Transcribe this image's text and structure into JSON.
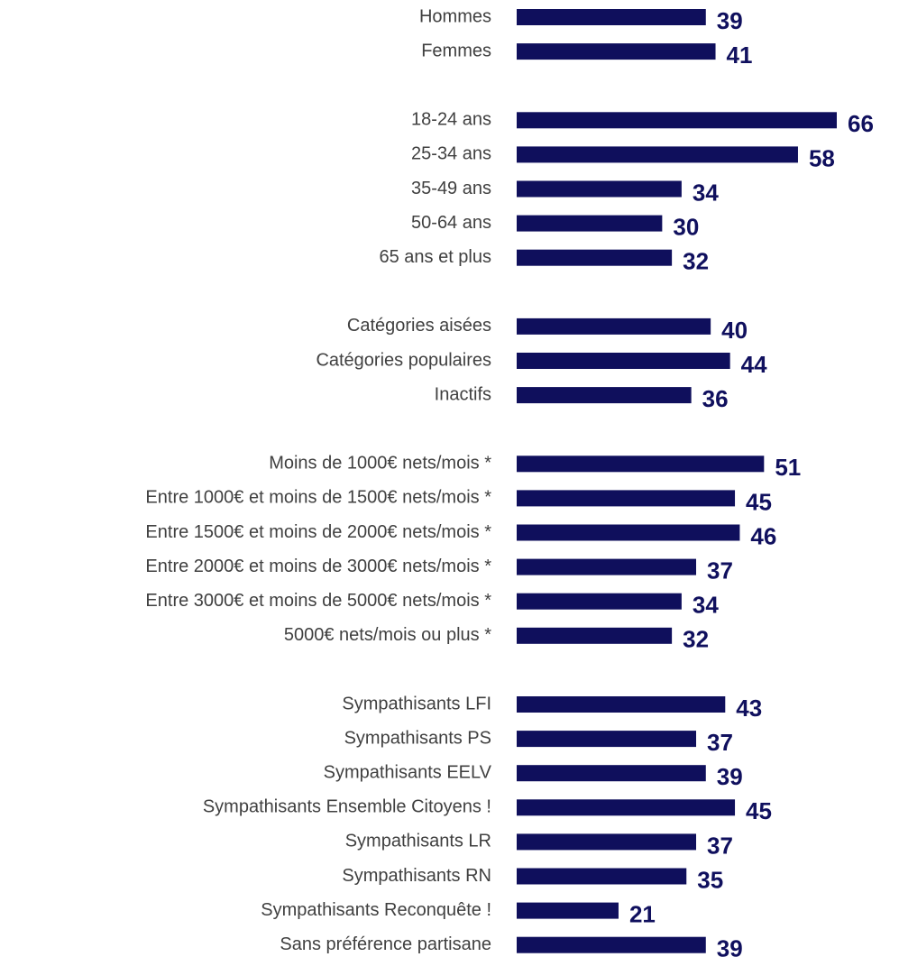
{
  "chart_data": {
    "type": "bar",
    "orientation": "horizontal",
    "color": "#0f0f5c",
    "categories": [
      "Hommes",
      "Femmes",
      null,
      "18-24 ans",
      "25-34 ans",
      "35-49 ans",
      "50-64 ans",
      "65 ans et plus",
      null,
      "Catégories aisées",
      "Catégories populaires",
      "Inactifs",
      null,
      "Moins de 1000€ nets/mois *",
      "Entre 1000€ et moins de 1500€ nets/mois *",
      "Entre 1500€ et moins de 2000€ nets/mois *",
      "Entre 2000€ et moins de 3000€ nets/mois *",
      "Entre 3000€ et moins de 5000€ nets/mois  *",
      "5000€ nets/mois ou plus *",
      null,
      "Sympathisants LFI",
      "Sympathisants PS",
      "Sympathisants EELV",
      "Sympathisants Ensemble Citoyens !",
      "Sympathisants LR",
      "Sympathisants RN",
      "Sympathisants Reconquête !",
      "Sans préférence partisane"
    ],
    "values": [
      39,
      41,
      null,
      66,
      58,
      34,
      30,
      32,
      null,
      40,
      44,
      36,
      null,
      51,
      45,
      46,
      37,
      34,
      32,
      null,
      43,
      37,
      39,
      45,
      37,
      35,
      21,
      39
    ]
  }
}
